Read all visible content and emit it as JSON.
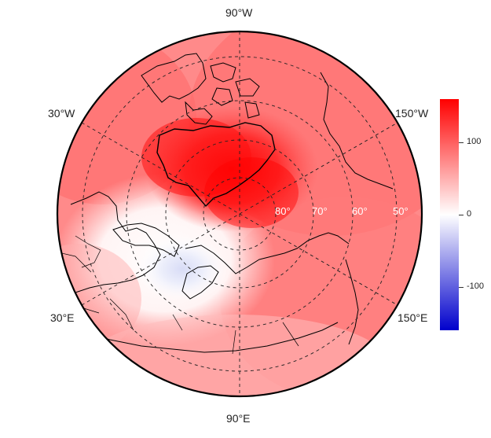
{
  "map": {
    "projection": "north-polar-stereographic",
    "field_colors": {
      "strong_positive": "#ff0000",
      "positive": "#ff8080",
      "neutral": "#ffffff",
      "negative": "#0000cc"
    },
    "longitude_labels": [
      {
        "id": "top",
        "text": "90°W"
      },
      {
        "id": "upper-left",
        "text": "30°W"
      },
      {
        "id": "upper-right",
        "text": "150°W"
      },
      {
        "id": "lower-left",
        "text": "30°E"
      },
      {
        "id": "lower-right",
        "text": "150°E"
      },
      {
        "id": "bottom",
        "text": "90°E"
      }
    ],
    "latitude_labels": [
      "80°",
      "70°",
      "60°",
      "50°"
    ]
  },
  "colorbar": {
    "ticks": [
      "100",
      "0",
      "-100"
    ],
    "tick_values": [
      100,
      0,
      -100
    ],
    "range": [
      -160,
      160
    ],
    "colors": {
      "top": "#ff0000",
      "middle": "#ffffff",
      "bottom": "#0000cc"
    }
  }
}
